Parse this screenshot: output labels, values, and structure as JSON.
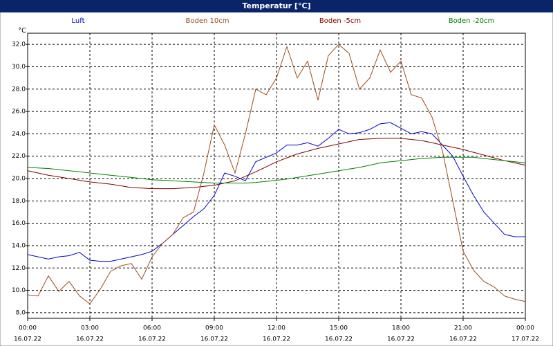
{
  "chart_data": {
    "type": "line",
    "title": "Temperatur [°C]",
    "y_unit": "°C",
    "x": [
      0,
      0.5,
      1,
      1.5,
      2,
      2.5,
      3,
      3.5,
      4,
      4.5,
      5,
      5.5,
      6,
      6.5,
      7,
      7.5,
      8,
      8.5,
      9,
      9.5,
      10,
      10.5,
      11,
      11.5,
      12,
      12.5,
      13,
      13.5,
      14,
      14.5,
      15,
      15.5,
      16,
      16.5,
      17,
      17.5,
      18,
      18.5,
      19,
      19.5,
      20,
      20.5,
      21,
      21.5,
      22,
      22.5,
      23,
      23.5,
      24
    ],
    "xlim": [
      0,
      24
    ],
    "xticks": [
      {
        "value": 0,
        "label": "00:00"
      },
      {
        "value": 3,
        "label": "03:00"
      },
      {
        "value": 6,
        "label": "06:00"
      },
      {
        "value": 9,
        "label": "09:00"
      },
      {
        "value": 12,
        "label": "12:00"
      },
      {
        "value": 15,
        "label": "15:00"
      },
      {
        "value": 18,
        "label": "18:00"
      },
      {
        "value": 21,
        "label": "21:00"
      },
      {
        "value": 24,
        "label": "00:00"
      }
    ],
    "xtick_dates": [
      "16.07.22",
      "16.07.22",
      "16.07.22",
      "16.07.22",
      "16.07.22",
      "16.07.22",
      "16.07.22",
      "16.07.22",
      "17.07.22"
    ],
    "ylim": [
      7.5,
      33
    ],
    "yticks": [
      {
        "value": 8,
        "label": "8.0"
      },
      {
        "value": 10,
        "label": "10.0"
      },
      {
        "value": 12,
        "label": "12.0"
      },
      {
        "value": 14,
        "label": "14.0"
      },
      {
        "value": 16,
        "label": "16.0"
      },
      {
        "value": 18,
        "label": "18.0"
      },
      {
        "value": 20,
        "label": "20.0"
      },
      {
        "value": 22,
        "label": "22.0"
      },
      {
        "value": 24,
        "label": "24.0"
      },
      {
        "value": 26,
        "label": "26.0"
      },
      {
        "value": 28,
        "label": "28.0"
      },
      {
        "value": 30,
        "label": "30.0"
      },
      {
        "value": 32,
        "label": "32.0"
      }
    ],
    "grid": true,
    "series": [
      {
        "name": "Luft",
        "color": "#0000cc",
        "values": [
          13.2,
          13.0,
          12.8,
          13.0,
          13.1,
          13.4,
          12.7,
          12.6,
          12.6,
          12.8,
          13.0,
          13.2,
          13.5,
          14.2,
          15.0,
          15.8,
          16.6,
          17.3,
          18.5,
          20.5,
          20.2,
          19.8,
          21.5,
          21.9,
          22.3,
          23.0,
          23.0,
          23.2,
          22.9,
          23.6,
          24.4,
          24.0,
          24.1,
          24.4,
          24.9,
          25.0,
          24.5,
          24.0,
          24.2,
          24.0,
          23.0,
          22.0,
          20.2,
          18.5,
          17.0,
          16.0,
          15.0,
          14.8,
          14.8
        ]
      },
      {
        "name": "Boden 10cm",
        "color": "#9a4a1a",
        "values": [
          9.6,
          9.5,
          11.3,
          9.9,
          10.8,
          9.5,
          8.8,
          10.1,
          11.7,
          12.2,
          12.4,
          11.0,
          13.0,
          14.2,
          15.0,
          16.5,
          17.0,
          20.5,
          24.8,
          23.0,
          20.5,
          24.0,
          28.0,
          27.5,
          29.0,
          31.8,
          29.0,
          30.5,
          27.0,
          31.0,
          32.0,
          31.2,
          28.0,
          29.0,
          31.5,
          29.5,
          30.5,
          27.5,
          27.2,
          25.5,
          22.5,
          18.0,
          13.5,
          11.8,
          10.8,
          10.3,
          9.5,
          9.2,
          9.0
        ]
      },
      {
        "name": "Boden -5cm",
        "color": "#800000",
        "values": [
          20.7,
          20.5,
          20.3,
          20.15,
          20.0,
          19.85,
          19.7,
          19.6,
          19.5,
          19.35,
          19.2,
          19.15,
          19.1,
          19.1,
          19.1,
          19.15,
          19.2,
          19.3,
          19.4,
          19.6,
          19.8,
          20.2,
          20.6,
          21.05,
          21.5,
          21.85,
          22.2,
          22.45,
          22.7,
          22.9,
          23.1,
          23.3,
          23.5,
          23.55,
          23.6,
          23.6,
          23.6,
          23.5,
          23.4,
          23.2,
          23.0,
          22.8,
          22.6,
          22.35,
          22.1,
          21.85,
          21.6,
          21.4,
          21.2
        ]
      },
      {
        "name": "Boden -20cm",
        "color": "#008000",
        "values": [
          21.0,
          20.95,
          20.9,
          20.8,
          20.7,
          20.6,
          20.5,
          20.4,
          20.3,
          20.2,
          20.1,
          20.0,
          19.9,
          19.85,
          19.8,
          19.75,
          19.7,
          19.65,
          19.6,
          19.6,
          19.6,
          19.6,
          19.65,
          19.75,
          19.85,
          19.95,
          20.1,
          20.25,
          20.4,
          20.55,
          20.7,
          20.85,
          21.0,
          21.2,
          21.4,
          21.5,
          21.6,
          21.7,
          21.8,
          21.85,
          21.9,
          21.9,
          21.9,
          21.9,
          21.8,
          21.7,
          21.6,
          21.5,
          21.4
        ]
      }
    ]
  }
}
